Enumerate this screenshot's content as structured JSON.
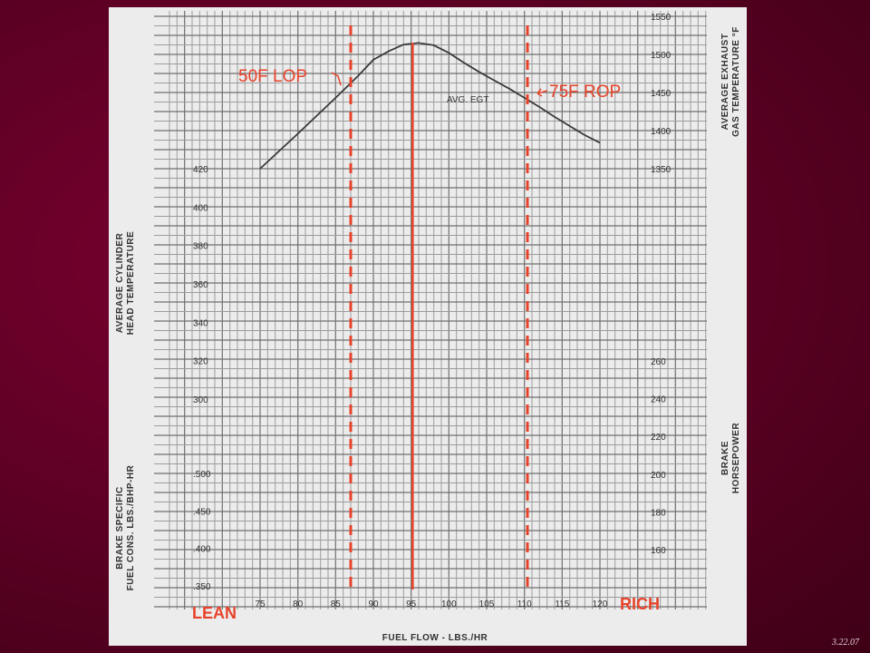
{
  "footer": {
    "date": "3.22.07"
  },
  "chart_data": {
    "type": "line",
    "title": "",
    "xlabel": "FUEL FLOW - LBS./HR",
    "x_ticks": [
      75,
      80,
      85,
      90,
      95,
      100,
      105,
      110,
      115,
      120
    ],
    "xlim": [
      72,
      130
    ],
    "axes": {
      "egt": {
        "label_lines": [
          "AVERAGE EXHAUST",
          "GAS TEMPERATURE °F"
        ],
        "ticks": [
          1350,
          1400,
          1450,
          1500,
          1550
        ],
        "range": [
          1350,
          1550
        ],
        "side": "right"
      },
      "cht": {
        "label_lines": [
          "AVERAGE CYLINDER",
          "HEAD TEMPERATURE"
        ],
        "ticks": [
          300,
          320,
          340,
          360,
          380,
          400,
          420
        ],
        "range": [
          300,
          420
        ],
        "side": "left"
      },
      "hp": {
        "label_lines": [
          "BRAKE",
          "HORSEPOWER"
        ],
        "ticks": [
          160,
          180,
          200,
          220,
          240,
          260
        ],
        "range": [
          160,
          260
        ],
        "side": "right"
      },
      "bsfc": {
        "label_lines": [
          "BRAKE SPECIFIC",
          "FUEL CONS. LBS./BHP-HR"
        ],
        "ticks": [
          ".350",
          ".400",
          ".450",
          ".500"
        ],
        "range": [
          0.35,
          0.5
        ],
        "side": "left"
      }
    },
    "series": [
      {
        "name": "AVG. EGT",
        "axis": "egt",
        "x": [
          75,
          80,
          85,
          88,
          90,
          92,
          94,
          96,
          98,
          100,
          102,
          104,
          106,
          108,
          110,
          112,
          114,
          116,
          118,
          120
        ],
        "y": [
          1350,
          1396,
          1443,
          1472,
          1493,
          1504,
          1513,
          1515,
          1512,
          1502,
          1489,
          1477,
          1466,
          1455,
          1443,
          1431,
          1418,
          1406,
          1394,
          1384
        ]
      }
    ],
    "reference_lines": [
      {
        "x": 87,
        "style": "dashed",
        "label": "50F LOP"
      },
      {
        "x": 95.2,
        "style": "solid",
        "label": ""
      },
      {
        "x": 110.4,
        "style": "dashed",
        "label": "75F ROP"
      }
    ],
    "corner_labels": {
      "left": "LEAN",
      "right": "RICH"
    },
    "colors": {
      "annotation": "#e8432a",
      "curve": "#3a3a3a",
      "paper": "#ececec",
      "background": "#6b0028"
    },
    "grid": true
  }
}
